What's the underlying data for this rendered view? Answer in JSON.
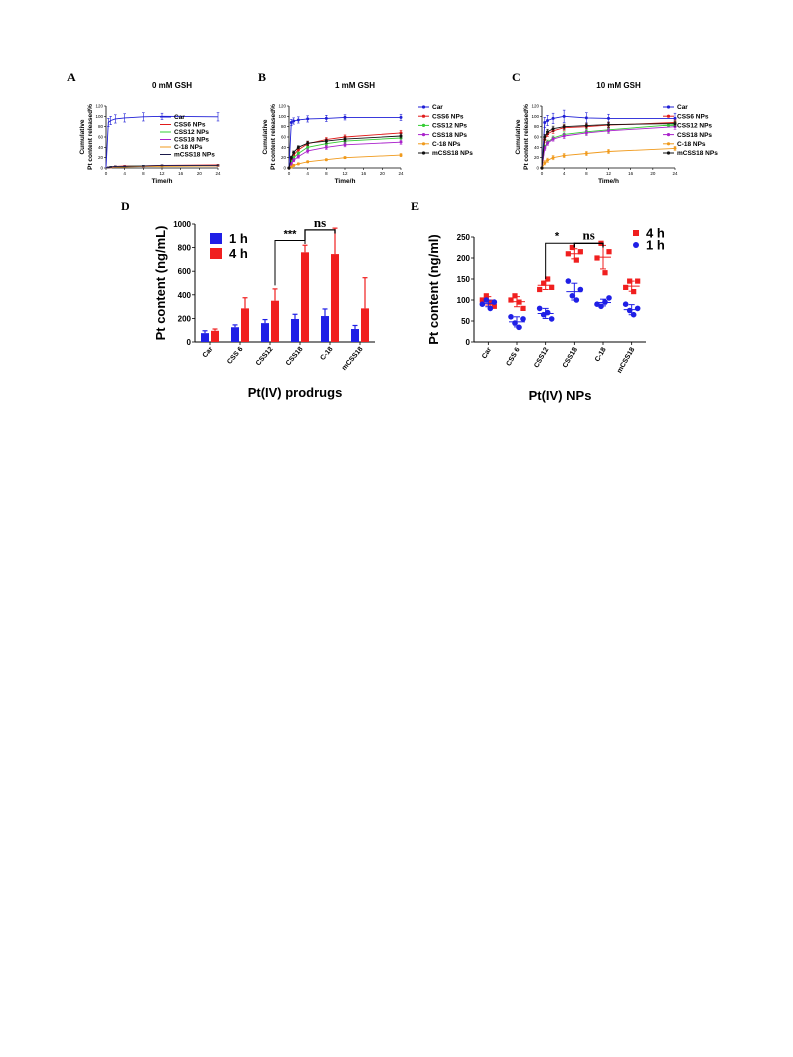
{
  "chart_data": [
    {
      "panel": "A",
      "type": "line",
      "title": "0 mM GSH",
      "xlabel": "Time/h",
      "ylabel": [
        "Cumulative",
        "Pt content released%"
      ],
      "xlim": [
        0,
        24
      ],
      "ylim": [
        0,
        120
      ],
      "xticks": [
        0,
        4,
        8,
        12,
        16,
        20,
        24
      ],
      "yticks": [
        0,
        20,
        40,
        60,
        80,
        100,
        120
      ],
      "legend_position": "right-middle",
      "x": [
        0,
        0.5,
        1,
        2,
        4,
        8,
        12,
        24
      ],
      "series": [
        {
          "name": "Car",
          "color": "#1f1fd6",
          "marker": "line",
          "values": [
            0,
            88,
            92,
            95,
            97,
            99,
            100,
            99
          ],
          "errors": [
            0,
            8,
            8,
            8,
            8,
            8,
            6,
            8
          ]
        },
        {
          "name": "CSS6 NPs",
          "color": "#e01b1b",
          "marker": "line",
          "values": [
            0,
            1,
            2,
            3,
            4,
            4,
            5,
            6
          ],
          "errors": [
            0,
            1,
            1,
            1,
            1,
            1,
            1,
            1
          ]
        },
        {
          "name": "CSS12 NPs",
          "color": "#33cc33",
          "marker": "line",
          "values": [
            0,
            1,
            2,
            2,
            3,
            4,
            4,
            5
          ],
          "errors": [
            0,
            1,
            1,
            1,
            1,
            1,
            1,
            1
          ]
        },
        {
          "name": "CSS18 NPs",
          "color": "#aa22cc",
          "marker": "line",
          "values": [
            0,
            1,
            1,
            2,
            3,
            3,
            4,
            4
          ],
          "errors": [
            0,
            1,
            1,
            1,
            1,
            1,
            1,
            1
          ]
        },
        {
          "name": "C-18 NPs",
          "color": "#f09a1c",
          "marker": "line",
          "values": [
            0,
            1,
            1,
            2,
            2,
            3,
            3,
            4
          ],
          "errors": [
            0,
            1,
            1,
            1,
            1,
            1,
            1,
            1
          ]
        },
        {
          "name": "mCSS18 NPs",
          "color": "#1a1a4a",
          "marker": "line",
          "values": [
            0,
            1,
            2,
            3,
            3,
            4,
            5,
            5
          ],
          "errors": [
            0,
            1,
            1,
            1,
            1,
            1,
            1,
            1
          ]
        }
      ]
    },
    {
      "panel": "B",
      "type": "line",
      "title": "1 mM GSH",
      "xlabel": "Time/h",
      "ylabel": [
        "Cumulative",
        "Pt content released%"
      ],
      "xlim": [
        0,
        24
      ],
      "ylim": [
        0,
        120
      ],
      "xticks": [
        0,
        4,
        8,
        12,
        16,
        20,
        24
      ],
      "yticks": [
        0,
        20,
        40,
        60,
        80,
        100,
        120
      ],
      "legend_position": "right",
      "x": [
        0,
        0.5,
        1,
        2,
        4,
        8,
        12,
        24
      ],
      "series": [
        {
          "name": "Car",
          "color": "#1f1fd6",
          "marker": "circle",
          "values": [
            0,
            88,
            91,
            93,
            95,
            96,
            98,
            98
          ],
          "errors": [
            0,
            6,
            6,
            6,
            6,
            6,
            5,
            6
          ]
        },
        {
          "name": "CSS6 NPs",
          "color": "#e01b1b",
          "marker": "circle",
          "values": [
            0,
            15,
            25,
            35,
            47,
            55,
            60,
            68
          ],
          "errors": [
            0,
            3,
            4,
            4,
            4,
            4,
            4,
            5
          ]
        },
        {
          "name": "CSS12 NPs",
          "color": "#33cc33",
          "marker": "circle",
          "values": [
            0,
            12,
            20,
            28,
            40,
            47,
            52,
            58
          ],
          "errors": [
            0,
            3,
            3,
            3,
            4,
            4,
            4,
            4
          ]
        },
        {
          "name": "CSS18 NPs",
          "color": "#aa22cc",
          "marker": "circle",
          "values": [
            0,
            8,
            15,
            22,
            33,
            40,
            45,
            50
          ],
          "errors": [
            0,
            3,
            3,
            3,
            4,
            4,
            4,
            4
          ]
        },
        {
          "name": "C-18 NPs",
          "color": "#f09a1c",
          "marker": "circle",
          "values": [
            0,
            2,
            5,
            8,
            12,
            16,
            20,
            25
          ],
          "errors": [
            0,
            2,
            2,
            2,
            2,
            2,
            2,
            3
          ]
        },
        {
          "name": "mCSS18 NPs",
          "color": "#111111",
          "marker": "circle",
          "values": [
            0,
            20,
            30,
            40,
            48,
            52,
            56,
            62
          ],
          "errors": [
            0,
            3,
            3,
            3,
            4,
            4,
            4,
            4
          ]
        }
      ]
    },
    {
      "panel": "C",
      "type": "line",
      "title": "10 mM GSH",
      "xlabel": "Time/h",
      "ylabel": [
        "Cumulative",
        "Pt content released%"
      ],
      "xlim": [
        0,
        24
      ],
      "ylim": [
        0,
        120
      ],
      "xticks": [
        0,
        4,
        8,
        12,
        16,
        20,
        24
      ],
      "yticks": [
        0,
        20,
        40,
        60,
        80,
        100,
        120
      ],
      "legend_position": "right",
      "x": [
        0,
        0.5,
        1,
        2,
        4,
        8,
        12,
        24
      ],
      "series": [
        {
          "name": "Car",
          "color": "#1f1fd6",
          "marker": "circle",
          "values": [
            0,
            88,
            92,
            96,
            100,
            97,
            96,
            96
          ],
          "errors": [
            0,
            10,
            10,
            10,
            12,
            10,
            8,
            10
          ]
        },
        {
          "name": "CSS6 NPs",
          "color": "#e01b1b",
          "marker": "circle",
          "values": [
            0,
            55,
            66,
            72,
            78,
            80,
            83,
            88
          ],
          "errors": [
            0,
            5,
            5,
            5,
            5,
            5,
            5,
            5
          ]
        },
        {
          "name": "CSS12 NPs",
          "color": "#33cc33",
          "marker": "circle",
          "values": [
            0,
            40,
            50,
            58,
            65,
            70,
            74,
            84
          ],
          "errors": [
            0,
            4,
            4,
            4,
            5,
            5,
            5,
            5
          ]
        },
        {
          "name": "CSS18 NPs",
          "color": "#aa22cc",
          "marker": "circle",
          "values": [
            0,
            38,
            48,
            56,
            62,
            68,
            72,
            80
          ],
          "errors": [
            0,
            4,
            4,
            4,
            5,
            5,
            5,
            5
          ]
        },
        {
          "name": "C-18 NPs",
          "color": "#f09a1c",
          "marker": "circle",
          "values": [
            0,
            10,
            15,
            20,
            24,
            28,
            32,
            38
          ],
          "errors": [
            0,
            4,
            4,
            4,
            4,
            4,
            4,
            4
          ]
        },
        {
          "name": "mCSS18 NPs",
          "color": "#111111",
          "marker": "circle",
          "values": [
            0,
            60,
            70,
            76,
            80,
            82,
            84,
            86
          ],
          "errors": [
            0,
            5,
            5,
            5,
            5,
            5,
            5,
            5
          ]
        }
      ]
    },
    {
      "panel": "D",
      "type": "bar",
      "xlabel": "Pt(IV) prodrugs",
      "ylabel": "Pt content (ng/mL)",
      "ylim": [
        0,
        1000
      ],
      "yticks": [
        0,
        200,
        400,
        600,
        800,
        1000
      ],
      "categories": [
        "Car",
        "CSS 6",
        "CSS12",
        "CSS18",
        "C-18",
        "mCSS18"
      ],
      "legend_position": "top-left",
      "series": [
        {
          "name": "1 h",
          "color": "#1f1fe6",
          "values": [
            75,
            125,
            160,
            195,
            220,
            110
          ],
          "errors": [
            20,
            20,
            30,
            40,
            60,
            30
          ]
        },
        {
          "name": "4 h",
          "color": "#f01f1f",
          "values": [
            95,
            285,
            350,
            760,
            745,
            285
          ],
          "errors": [
            15,
            90,
            100,
            60,
            220,
            260
          ]
        }
      ],
      "annotations": [
        {
          "text": "***",
          "from": "CSS12",
          "to": "CSS18"
        },
        {
          "text": "ns",
          "from": "CSS18",
          "to": "C-18"
        }
      ]
    },
    {
      "panel": "E",
      "type": "scatter",
      "xlabel": "Pt(IV) NPs",
      "ylabel": "Pt content (ng/ml)",
      "ylim": [
        0,
        250
      ],
      "yticks": [
        0,
        50,
        100,
        150,
        200,
        250
      ],
      "categories": [
        "Car",
        "CSS 6",
        "CSS12",
        "CSS18",
        "C-18",
        "mCSS18"
      ],
      "legend_position": "top-right",
      "series": [
        {
          "name": "4 h",
          "color": "#f01f1f",
          "marker": "square",
          "points": [
            [
              100,
              110,
              95,
              85
            ],
            [
              100,
              110,
              95,
              80
            ],
            [
              125,
              140,
              150,
              130
            ],
            [
              210,
              225,
              195,
              215
            ],
            [
              200,
              235,
              165,
              215
            ],
            [
              130,
              145,
              120,
              145
            ]
          ],
          "mean": [
            98,
            96,
            135,
            210,
            202,
            133
          ],
          "sd": [
            10,
            12,
            10,
            12,
            28,
            12
          ]
        },
        {
          "name": "1 h",
          "color": "#1f1fe6",
          "marker": "circle",
          "points": [
            [
              90,
              100,
              80,
              95
            ],
            [
              60,
              45,
              35,
              55
            ],
            [
              80,
              65,
              70,
              55
            ],
            [
              145,
              110,
              100,
              125
            ],
            [
              90,
              85,
              95,
              105
            ],
            [
              90,
              75,
              65,
              80
            ]
          ],
          "mean": [
            92,
            48,
            68,
            120,
            94,
            77
          ],
          "sd": [
            8,
            12,
            12,
            20,
            8,
            12
          ]
        }
      ],
      "annotations": [
        {
          "text": "*",
          "from": "CSS12",
          "to": "CSS18"
        },
        {
          "text": "ns",
          "from": "CSS18",
          "to": "C-18"
        }
      ]
    }
  ],
  "panel_labels": {
    "a": "A",
    "b": "B",
    "c": "C",
    "d": "D",
    "e": "E"
  }
}
